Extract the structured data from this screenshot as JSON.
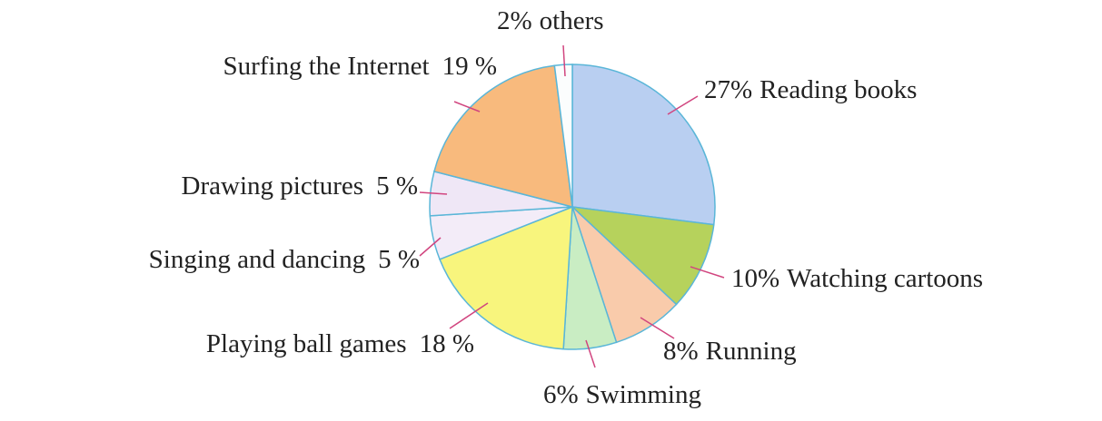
{
  "chart_data": {
    "type": "pie",
    "categories": [
      "Reading books",
      "Watching cartoons",
      "Running",
      "Swimming",
      "Playing ball games",
      "Singing and dancing",
      "Drawing pictures",
      "Surfing the Internet",
      "others"
    ],
    "values": [
      27,
      10,
      8,
      6,
      18,
      5,
      5,
      19,
      2
    ],
    "value_labels": [
      "27%",
      "10%",
      "8%",
      "6%",
      "18 %",
      "5 %",
      "5 %",
      "19 %",
      "2%"
    ],
    "colors": [
      "#b9cff1",
      "#b6d25c",
      "#f9cbab",
      "#c9edc3",
      "#f8f57d",
      "#f3ecf8",
      "#efe7f6",
      "#f8ba7d",
      "#fbfdfd"
    ],
    "edge_color": "#5ab6d8"
  }
}
